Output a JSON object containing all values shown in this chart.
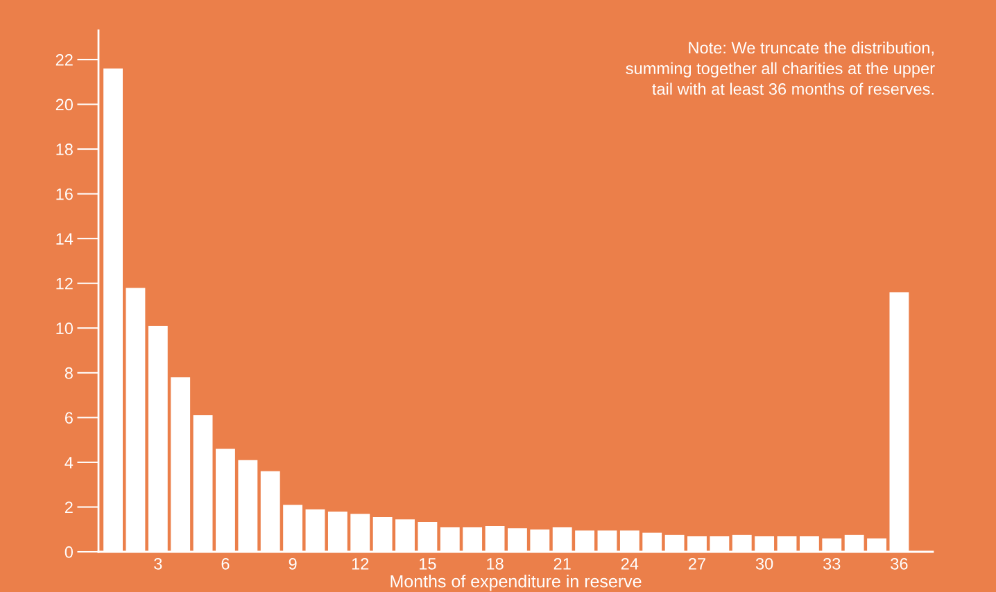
{
  "chart_data": {
    "type": "bar",
    "xlabel": "Months of expenditure in reserve",
    "annotations": [
      "Note: We truncate the distribution,\nsumming together all charities at the upper\ntail with at least 36 months of reserves."
    ],
    "x": [
      1,
      2,
      3,
      4,
      5,
      6,
      7,
      8,
      9,
      10,
      11,
      12,
      13,
      14,
      15,
      16,
      17,
      18,
      19,
      20,
      21,
      22,
      23,
      24,
      25,
      26,
      27,
      28,
      29,
      30,
      31,
      32,
      33,
      34,
      35,
      36
    ],
    "values": [
      21.6,
      11.8,
      10.1,
      7.8,
      6.1,
      4.6,
      4.1,
      3.6,
      2.1,
      1.9,
      1.8,
      1.7,
      1.55,
      1.45,
      1.33,
      1.1,
      1.1,
      1.15,
      1.05,
      1.0,
      1.1,
      0.95,
      0.95,
      0.95,
      0.85,
      0.75,
      0.7,
      0.7,
      0.75,
      0.7,
      0.7,
      0.7,
      0.6,
      0.75,
      0.6,
      11.6
    ],
    "color": "#ffffff",
    "xlim": [
      0.35,
      37.5
    ],
    "ylim": [
      0,
      23.3
    ],
    "xticks": [
      3,
      6,
      9,
      12,
      15,
      18,
      21,
      24,
      27,
      30,
      33,
      36
    ],
    "yticks": [
      0,
      2,
      4,
      6,
      8,
      10,
      12,
      14,
      16,
      18,
      20,
      22
    ]
  }
}
